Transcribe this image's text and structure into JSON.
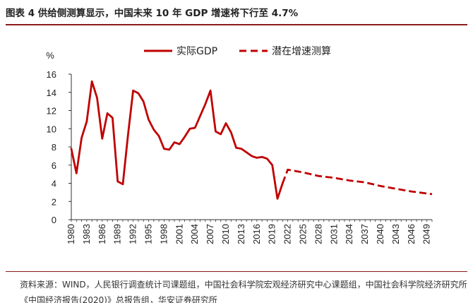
{
  "figure_title": "图表 4 供给侧测算显示，中国未来 10 年 GDP 增速将下行至 4.7%",
  "source_note": "资料来源：WIND，人民银行调查统计司课题组，中国社会科学院宏观经济研究中心课题组，中国社会科学院经济研究所《中国经济报告(2020)》总报告组，华安证券研究所",
  "colors": {
    "series": "#c00000",
    "axis": "#333333",
    "title_rule": "#8b1a1a"
  },
  "chart_data": {
    "type": "line",
    "title": "",
    "ylabel": "%",
    "xlabel": "",
    "ylim": [
      0,
      16
    ],
    "yticks": [
      0,
      2,
      4,
      6,
      8,
      10,
      12,
      14,
      16
    ],
    "xlim": [
      1980,
      2050
    ],
    "xticks": [
      1980,
      1983,
      1986,
      1989,
      1992,
      1995,
      1998,
      2001,
      2004,
      2007,
      2010,
      2013,
      2016,
      2019,
      2022,
      2025,
      2028,
      2031,
      2034,
      2037,
      2040,
      2043,
      2046,
      2049
    ],
    "grid": false,
    "legend_position": "top",
    "series": [
      {
        "name": "实际GDP",
        "style": "solid",
        "x": [
          1980,
          1981,
          1982,
          1983,
          1984,
          1985,
          1986,
          1987,
          1988,
          1989,
          1990,
          1991,
          1992,
          1993,
          1994,
          1995,
          1996,
          1997,
          1998,
          1999,
          2000,
          2001,
          2002,
          2003,
          2004,
          2005,
          2006,
          2007,
          2008,
          2009,
          2010,
          2011,
          2012,
          2013,
          2014,
          2015,
          2016,
          2017,
          2018,
          2019,
          2020,
          2021
        ],
        "y": [
          7.8,
          5.1,
          9.0,
          10.8,
          15.2,
          13.4,
          8.9,
          11.7,
          11.2,
          4.2,
          3.9,
          9.3,
          14.2,
          13.9,
          13.0,
          11.0,
          9.9,
          9.2,
          7.8,
          7.7,
          8.5,
          8.3,
          9.1,
          10.0,
          10.1,
          11.4,
          12.7,
          14.2,
          9.7,
          9.4,
          10.6,
          9.6,
          7.9,
          7.8,
          7.4,
          7.0,
          6.8,
          6.9,
          6.7,
          6.0,
          2.3,
          4.0
        ]
      },
      {
        "name": "潜在增速测算",
        "style": "dashed",
        "x": [
          2021,
          2022,
          2025,
          2028,
          2031,
          2034,
          2037,
          2040,
          2043,
          2046,
          2050
        ],
        "y": [
          4.0,
          5.5,
          5.2,
          4.8,
          4.6,
          4.3,
          4.1,
          3.7,
          3.4,
          3.1,
          2.8
        ]
      }
    ]
  }
}
